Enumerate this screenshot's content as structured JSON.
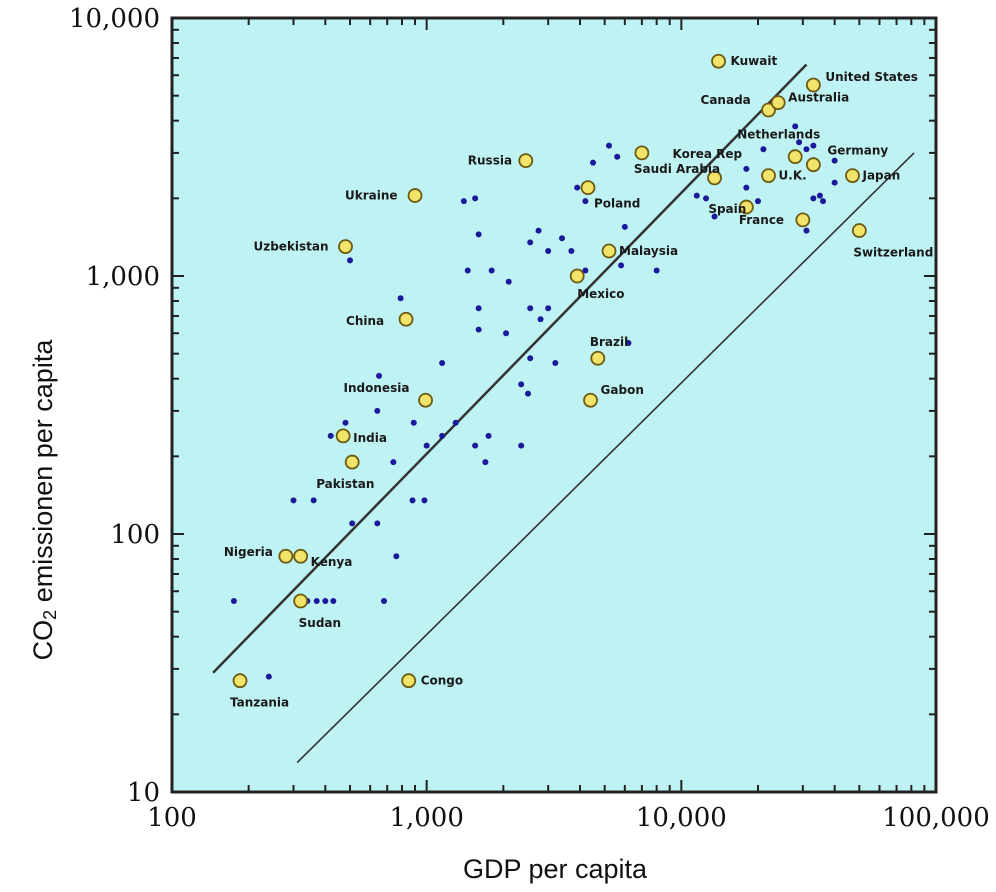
{
  "chart_data": {
    "type": "scatter",
    "xlabel": "GDP per capita",
    "ylabel_main": "CO",
    "ylabel_sub": "2",
    "ylabel_rest": " emissionen per capita",
    "xscale": "log",
    "yscale": "log",
    "xlim": [
      100,
      100000
    ],
    "ylim": [
      10,
      10000
    ],
    "x_ticks": [
      100,
      1000,
      10000,
      100000
    ],
    "x_tick_labels": [
      "100",
      "1,000",
      "10,000",
      "100,000"
    ],
    "y_ticks": [
      10,
      100,
      1000,
      10000
    ],
    "y_tick_labels": [
      "10",
      "100",
      "1,000",
      "10,000"
    ],
    "colors": {
      "plot_bg": "#bff2f2",
      "frame": "#222222",
      "dot": "#1a1a9a",
      "highlight_fill": "#f2e36a",
      "highlight_stroke": "#6b5a10",
      "line": "#333333"
    },
    "trend_lines": [
      {
        "x": [
          145,
          31000
        ],
        "y": [
          29,
          6600
        ]
      },
      {
        "x": [
          310,
          82000
        ],
        "y": [
          13,
          3000
        ]
      }
    ],
    "labeled_points": [
      {
        "name": "Kuwait",
        "x": 14000,
        "y": 6800
      },
      {
        "name": "United States",
        "x": 33000,
        "y": 5500
      },
      {
        "name": "Canada",
        "x": 22000,
        "y": 4400
      },
      {
        "name": "Australia",
        "x": 24000,
        "y": 4700
      },
      {
        "name": "Netherlands",
        "x": 28000,
        "y": 2900
      },
      {
        "name": "Germany",
        "x": 33000,
        "y": 2700
      },
      {
        "name": "Korea Rep",
        "x": 13500,
        "y": 2400
      },
      {
        "name": "U.K.",
        "x": 22000,
        "y": 2450
      },
      {
        "name": "Japan",
        "x": 47000,
        "y": 2450
      },
      {
        "name": "Spain",
        "x": 18000,
        "y": 1850
      },
      {
        "name": "France",
        "x": 30000,
        "y": 1650
      },
      {
        "name": "Switzerland",
        "x": 50000,
        "y": 1500
      },
      {
        "name": "Russia",
        "x": 2450,
        "y": 2800
      },
      {
        "name": "Saudi Arabia",
        "x": 7000,
        "y": 3000
      },
      {
        "name": "Poland",
        "x": 4300,
        "y": 2200
      },
      {
        "name": "Ukraine",
        "x": 900,
        "y": 2050
      },
      {
        "name": "Uzbekistan",
        "x": 480,
        "y": 1300
      },
      {
        "name": "Malaysia",
        "x": 5200,
        "y": 1250
      },
      {
        "name": "Mexico",
        "x": 3900,
        "y": 1000
      },
      {
        "name": "China",
        "x": 830,
        "y": 680
      },
      {
        "name": "Brazil",
        "x": 4700,
        "y": 480
      },
      {
        "name": "Gabon",
        "x": 4400,
        "y": 330
      },
      {
        "name": "Indonesia",
        "x": 990,
        "y": 330
      },
      {
        "name": "India",
        "x": 470,
        "y": 240
      },
      {
        "name": "Pakistan",
        "x": 510,
        "y": 190
      },
      {
        "name": "Nigeria",
        "x": 280,
        "y": 82
      },
      {
        "name": "Kenya",
        "x": 320,
        "y": 82
      },
      {
        "name": "Sudan",
        "x": 320,
        "y": 55
      },
      {
        "name": "Tanzania",
        "x": 185,
        "y": 27
      },
      {
        "name": "Congo",
        "x": 850,
        "y": 27
      }
    ],
    "other_points": [
      {
        "x": 175,
        "y": 55
      },
      {
        "x": 240,
        "y": 28
      },
      {
        "x": 300,
        "y": 135
      },
      {
        "x": 360,
        "y": 135
      },
      {
        "x": 340,
        "y": 55
      },
      {
        "x": 370,
        "y": 55
      },
      {
        "x": 400,
        "y": 55
      },
      {
        "x": 430,
        "y": 55
      },
      {
        "x": 510,
        "y": 110
      },
      {
        "x": 640,
        "y": 110
      },
      {
        "x": 680,
        "y": 55
      },
      {
        "x": 760,
        "y": 82
      },
      {
        "x": 880,
        "y": 135
      },
      {
        "x": 980,
        "y": 135
      },
      {
        "x": 420,
        "y": 240
      },
      {
        "x": 480,
        "y": 270
      },
      {
        "x": 500,
        "y": 190
      },
      {
        "x": 640,
        "y": 300
      },
      {
        "x": 650,
        "y": 410
      },
      {
        "x": 740,
        "y": 190
      },
      {
        "x": 890,
        "y": 270
      },
      {
        "x": 1000,
        "y": 220
      },
      {
        "x": 1150,
        "y": 240
      },
      {
        "x": 1150,
        "y": 460
      },
      {
        "x": 1300,
        "y": 270
      },
      {
        "x": 1550,
        "y": 220
      },
      {
        "x": 1700,
        "y": 190
      },
      {
        "x": 1750,
        "y": 240
      },
      {
        "x": 2350,
        "y": 220
      },
      {
        "x": 2350,
        "y": 380
      },
      {
        "x": 2500,
        "y": 350
      },
      {
        "x": 2550,
        "y": 480
      },
      {
        "x": 3200,
        "y": 460
      },
      {
        "x": 6200,
        "y": 550
      },
      {
        "x": 1600,
        "y": 620
      },
      {
        "x": 2050,
        "y": 600
      },
      {
        "x": 2800,
        "y": 680
      },
      {
        "x": 3000,
        "y": 750
      },
      {
        "x": 1600,
        "y": 750
      },
      {
        "x": 2550,
        "y": 750
      },
      {
        "x": 1450,
        "y": 1050
      },
      {
        "x": 1800,
        "y": 1050
      },
      {
        "x": 2100,
        "y": 950
      },
      {
        "x": 1600,
        "y": 1450
      },
      {
        "x": 2550,
        "y": 1350
      },
      {
        "x": 2750,
        "y": 1500
      },
      {
        "x": 3000,
        "y": 1250
      },
      {
        "x": 3400,
        "y": 1400
      },
      {
        "x": 3700,
        "y": 1250
      },
      {
        "x": 4200,
        "y": 1050
      },
      {
        "x": 5800,
        "y": 1100
      },
      {
        "x": 6000,
        "y": 1550
      },
      {
        "x": 8000,
        "y": 1050
      },
      {
        "x": 1400,
        "y": 1950
      },
      {
        "x": 1550,
        "y": 2000
      },
      {
        "x": 4500,
        "y": 2750
      },
      {
        "x": 4200,
        "y": 1950
      },
      {
        "x": 3900,
        "y": 2200
      },
      {
        "x": 5200,
        "y": 3200
      },
      {
        "x": 5600,
        "y": 2900
      },
      {
        "x": 790,
        "y": 820
      },
      {
        "x": 500,
        "y": 1150
      },
      {
        "x": 11500,
        "y": 2050
      },
      {
        "x": 12500,
        "y": 2000
      },
      {
        "x": 13500,
        "y": 1700
      },
      {
        "x": 18000,
        "y": 2200
      },
      {
        "x": 18000,
        "y": 2600
      },
      {
        "x": 20000,
        "y": 1950
      },
      {
        "x": 21000,
        "y": 3100
      },
      {
        "x": 28000,
        "y": 3800
      },
      {
        "x": 29000,
        "y": 3300
      },
      {
        "x": 31000,
        "y": 3100
      },
      {
        "x": 33000,
        "y": 3200
      },
      {
        "x": 33000,
        "y": 2000
      },
      {
        "x": 35000,
        "y": 2050
      },
      {
        "x": 31000,
        "y": 1500
      },
      {
        "x": 40000,
        "y": 2300
      },
      {
        "x": 40000,
        "y": 2800
      },
      {
        "x": 36000,
        "y": 1950
      }
    ]
  }
}
